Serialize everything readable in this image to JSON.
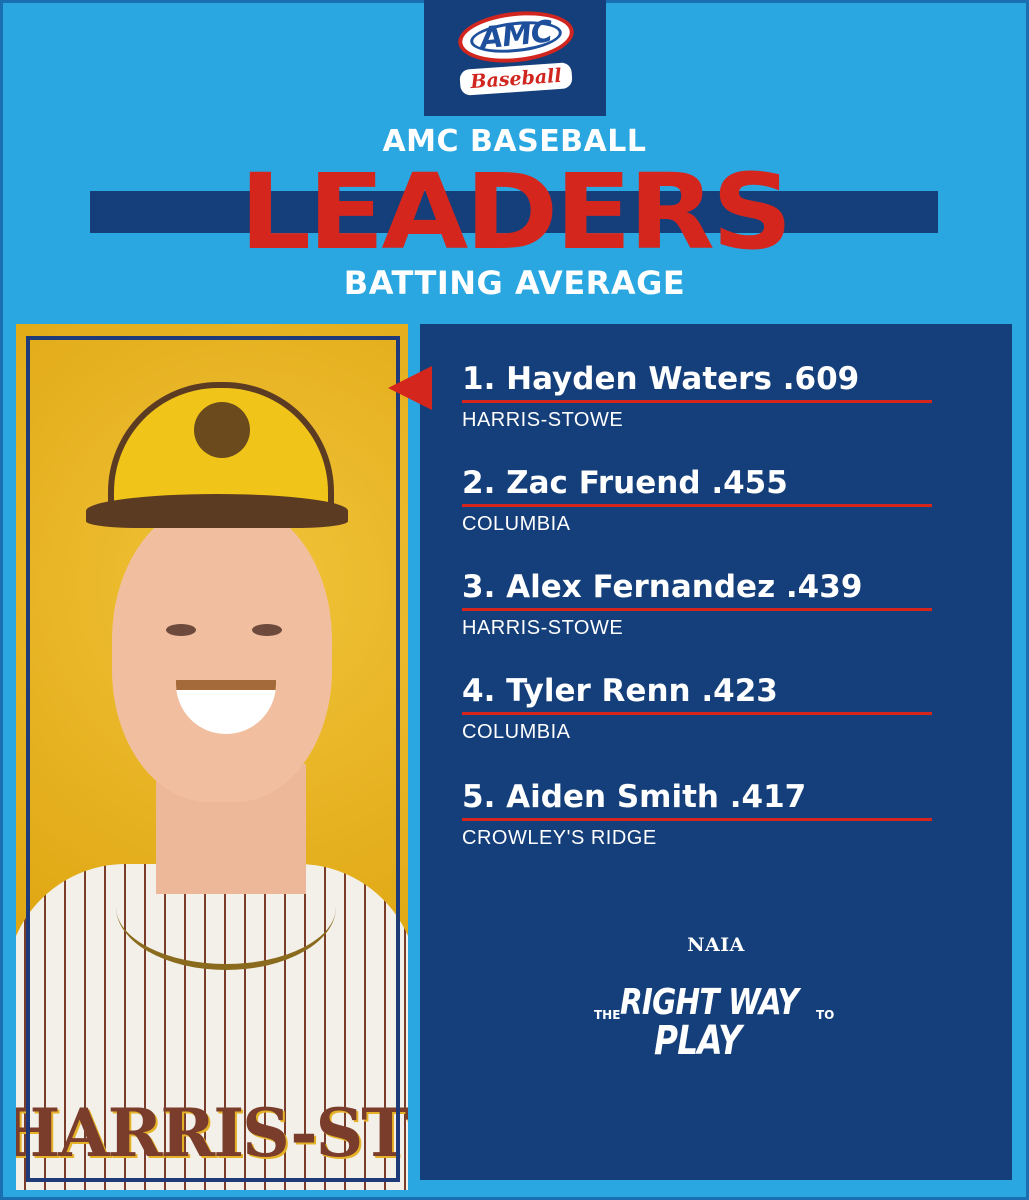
{
  "logo": {
    "org": "AMC",
    "sport": "Baseball"
  },
  "header": {
    "line1": "AMC BASEBALL",
    "line2": "LEADERS",
    "line3": "BATTING AVERAGE"
  },
  "photo": {
    "jersey_text": "HARRIS-STOW"
  },
  "leaders": [
    {
      "label": "1. Hayden Waters .609",
      "team": "HARRIS-STOWE"
    },
    {
      "label": "2. Zac Fruend .455",
      "team": "COLUMBIA"
    },
    {
      "label": "3. Alex Fernandez .439",
      "team": "HARRIS-STOWE"
    },
    {
      "label": "4. Tyler Renn .423",
      "team": "COLUMBIA"
    },
    {
      "label": "5. Aiden Smith .417",
      "team": "CROWLEY'S RIDGE"
    }
  ],
  "footer": {
    "naia": "NAIA",
    "tag_the": "THE",
    "tag_main": "RIGHT WAY",
    "tag_to": "TO",
    "tag_play": "PLAY"
  },
  "colors": {
    "background": "#2aa7e0",
    "navy": "#143f7a",
    "red": "#d5261e",
    "gold": "#e1ac16"
  }
}
